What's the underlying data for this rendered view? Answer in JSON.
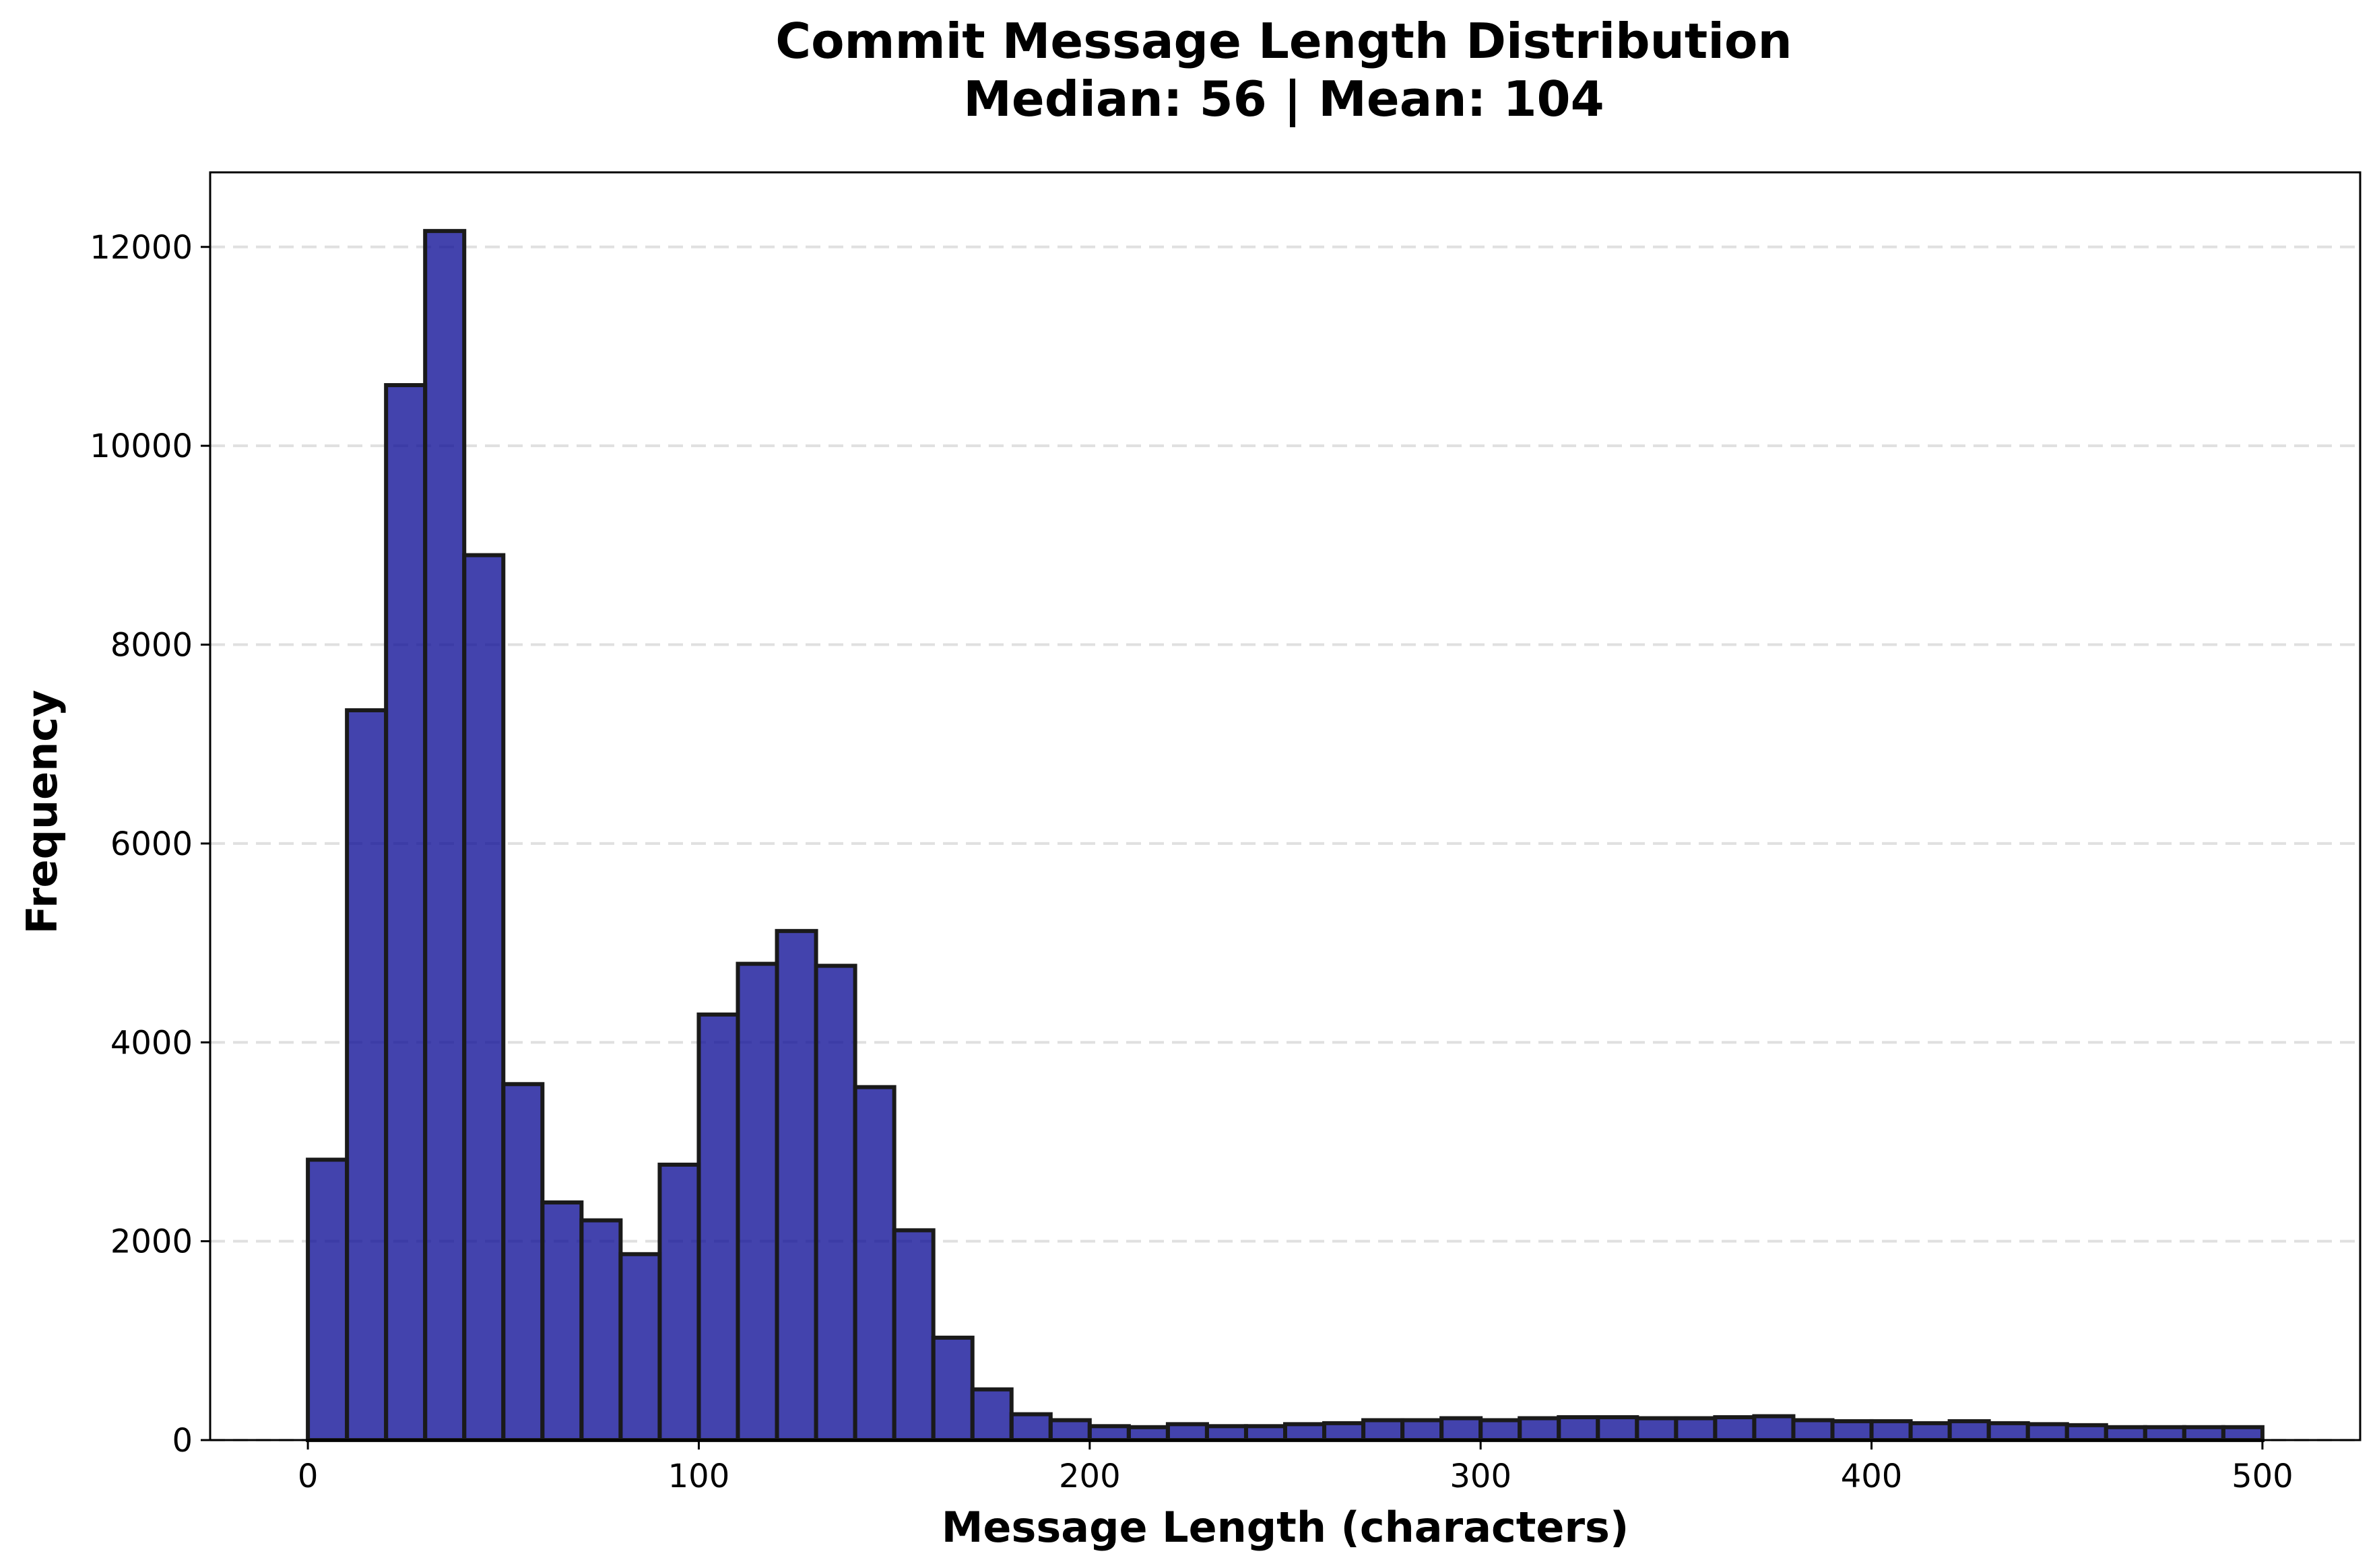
{
  "chart_data": {
    "type": "bar",
    "title": "Commit Message Length Distribution",
    "subtitle": "Median: 56 | Mean: 104",
    "xlabel": "Message Length (characters)",
    "ylabel": "Frequency",
    "xlim": [
      -25,
      525
    ],
    "ylim": [
      0,
      12750
    ],
    "xticks": [
      0,
      100,
      200,
      300,
      400,
      500
    ],
    "yticks": [
      0,
      2000,
      4000,
      6000,
      8000,
      10000,
      12000
    ],
    "grid": "y-dashed",
    "colors": {
      "bar_fill": "#0e0e96",
      "bar_edge": "#1a1a1a",
      "grid": "#cccccc"
    },
    "bin_edges": [
      0,
      10,
      20,
      30,
      40,
      50,
      60,
      70,
      80,
      90,
      100,
      110,
      120,
      130,
      140,
      150,
      160,
      170,
      180,
      190,
      200,
      210,
      220,
      230,
      240,
      250,
      260,
      270,
      280,
      290,
      300,
      310,
      320,
      330,
      340,
      350,
      360,
      370,
      380,
      390,
      400,
      410,
      420,
      430,
      440,
      450,
      460,
      470,
      480,
      490,
      500
    ],
    "values": [
      2820,
      7340,
      10610,
      12160,
      8900,
      3580,
      2390,
      2210,
      1870,
      2770,
      4280,
      4790,
      5120,
      4770,
      3550,
      2110,
      1030,
      510,
      260,
      200,
      140,
      130,
      160,
      140,
      140,
      160,
      170,
      200,
      200,
      220,
      200,
      220,
      230,
      230,
      220,
      220,
      230,
      240,
      200,
      190,
      190,
      170,
      190,
      170,
      160,
      150,
      130,
      130,
      130,
      130
    ]
  }
}
